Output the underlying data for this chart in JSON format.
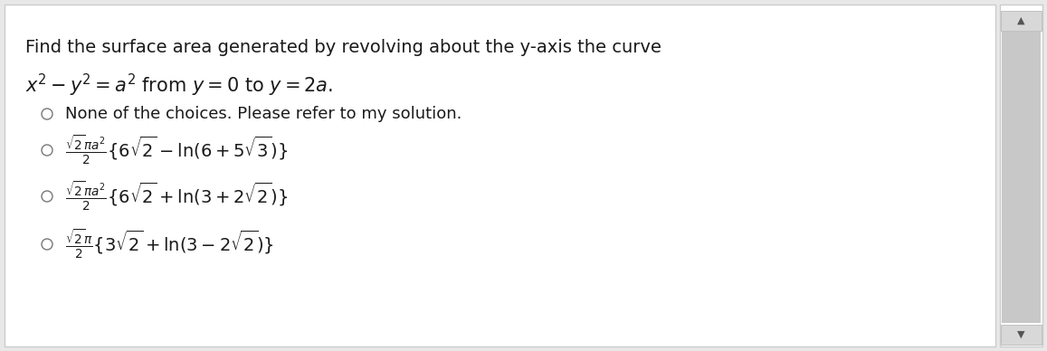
{
  "bg_outer": "#e8e8e8",
  "bg_panel": "#ffffff",
  "border_color": "#cccccc",
  "text_color": "#1a1a1a",
  "scrollbar_bg": "#f0f0f0",
  "scrollbar_track": "#c8c8c8",
  "scrollbar_btn": "#d8d8d8",
  "scrollbar_btn_border": "#b0b0b0",
  "title_line1": "Find the surface area generated by revolving about the y-axis the curve",
  "title_line2": "$x^2 - y^2 = a^2$ from $y = 0$ to $y = 2a.$",
  "choice0": "None of the choices. Please refer to my solution.",
  "choice1": "$\\frac{\\sqrt{2}\\pi a^2}{2}\\{6\\sqrt{2} - \\ln(6 + 5\\sqrt{3})\\}$",
  "choice2": "$\\frac{\\sqrt{2}\\pi a^2}{2}\\{6\\sqrt{2} + \\ln(3 + 2\\sqrt{2})\\}$",
  "choice3": "$\\frac{\\sqrt{2}\\pi}{2}\\{3\\sqrt{2} + \\ln(3 - 2\\sqrt{2})\\}$",
  "title_fontsize": 14,
  "math_fontsize": 14,
  "plain_fontsize": 13
}
